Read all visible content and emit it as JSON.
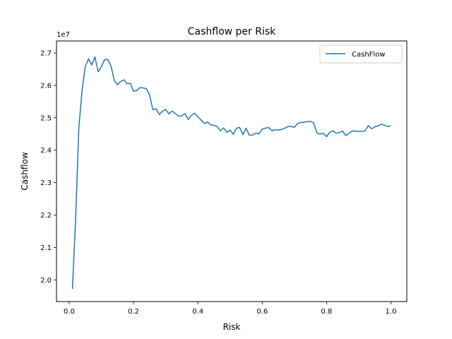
{
  "chart_data": {
    "type": "line",
    "title": "Cashflow per Risk",
    "xlabel": "Risk",
    "ylabel": "Cashflow",
    "y_offset_label": "1e7",
    "xlim": [
      -0.0395,
      1.0495
    ],
    "ylim": [
      19.33,
      27.37
    ],
    "x_ticks": [
      0.0,
      0.2,
      0.4,
      0.6,
      0.8,
      1.0
    ],
    "x_tick_labels": [
      "0.0",
      "0.2",
      "0.4",
      "0.6",
      "0.8",
      "1.0"
    ],
    "y_ticks": [
      20.0,
      21.0,
      22.0,
      23.0,
      24.0,
      25.0,
      26.0,
      27.0
    ],
    "y_tick_labels": [
      "2.0",
      "2.1",
      "2.2",
      "2.3",
      "2.4",
      "2.5",
      "2.6",
      "2.7"
    ],
    "grid": false,
    "legend": {
      "position": "top-right",
      "entries": [
        "CashFlow"
      ]
    },
    "series": [
      {
        "name": "CashFlow",
        "color": "#1f77b4",
        "x": [
          0.01,
          0.02,
          0.03,
          0.04,
          0.05,
          0.06,
          0.07,
          0.08,
          0.09,
          0.1,
          0.11,
          0.12,
          0.13,
          0.14,
          0.15,
          0.16,
          0.17,
          0.18,
          0.19,
          0.2,
          0.21,
          0.22,
          0.23,
          0.24,
          0.25,
          0.26,
          0.27,
          0.28,
          0.29,
          0.3,
          0.31,
          0.32,
          0.33,
          0.34,
          0.35,
          0.36,
          0.37,
          0.38,
          0.39,
          0.4,
          0.41,
          0.42,
          0.43,
          0.44,
          0.45,
          0.46,
          0.47,
          0.48,
          0.49,
          0.5,
          0.51,
          0.52,
          0.53,
          0.54,
          0.55,
          0.56,
          0.57,
          0.58,
          0.59,
          0.6,
          0.61,
          0.62,
          0.63,
          0.64,
          0.65,
          0.66,
          0.67,
          0.68,
          0.69,
          0.7,
          0.71,
          0.72,
          0.73,
          0.74,
          0.75,
          0.76,
          0.77,
          0.78,
          0.79,
          0.8,
          0.81,
          0.82,
          0.83,
          0.84,
          0.85,
          0.86,
          0.87,
          0.88,
          0.89,
          0.9,
          0.91,
          0.92,
          0.93,
          0.94,
          0.95,
          0.96,
          0.97,
          0.98,
          0.99,
          1.0
        ],
        "y": [
          19.72,
          21.9,
          24.7,
          25.85,
          26.58,
          26.82,
          26.63,
          26.88,
          26.42,
          26.58,
          26.79,
          26.8,
          26.6,
          26.15,
          26.02,
          26.12,
          26.17,
          26.05,
          26.06,
          25.82,
          25.84,
          25.93,
          25.92,
          25.9,
          25.7,
          25.25,
          25.28,
          25.1,
          25.2,
          25.26,
          25.12,
          25.21,
          25.13,
          25.05,
          25.06,
          25.13,
          24.95,
          25.08,
          25.14,
          25.03,
          24.93,
          24.82,
          24.87,
          24.78,
          24.77,
          24.73,
          24.6,
          24.69,
          24.55,
          24.62,
          24.49,
          24.68,
          24.7,
          24.48,
          24.68,
          24.46,
          24.47,
          24.53,
          24.5,
          24.65,
          24.68,
          24.7,
          24.6,
          24.63,
          24.62,
          24.64,
          24.68,
          24.73,
          24.73,
          24.71,
          24.82,
          24.86,
          24.86,
          24.88,
          24.89,
          24.84,
          24.53,
          24.5,
          24.52,
          24.42,
          24.55,
          24.6,
          24.52,
          24.55,
          24.59,
          24.45,
          24.52,
          24.6,
          24.58,
          24.58,
          24.58,
          24.6,
          24.76,
          24.66,
          24.72,
          24.75,
          24.8,
          24.77,
          24.73,
          24.75
        ]
      }
    ]
  }
}
